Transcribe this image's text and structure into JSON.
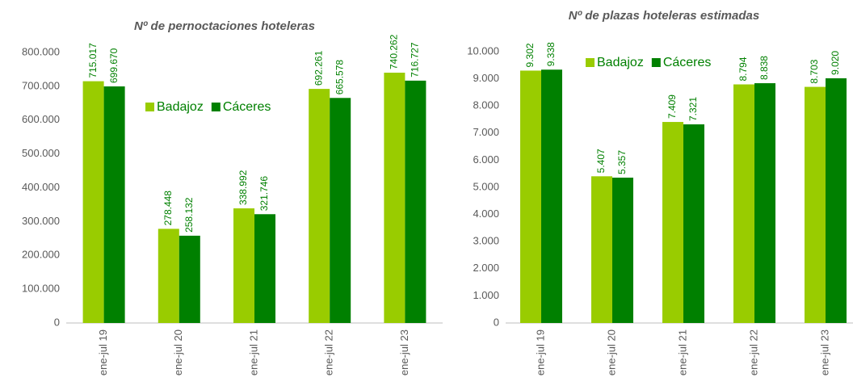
{
  "chart_data": [
    {
      "type": "bar",
      "title": "Nº de pernoctaciones hoteleras",
      "categories": [
        "ene-jul 19",
        "ene-jul 20",
        "ene-jul 21",
        "ene-jul 22",
        "ene-jul 23"
      ],
      "series": [
        {
          "name": "Badajoz",
          "color": "#99cc00",
          "values": [
            715017,
            278448,
            338992,
            692261,
            740262
          ],
          "value_labels": [
            "715.017",
            "278.448",
            "338.992",
            "692.261",
            "740.262"
          ]
        },
        {
          "name": "Cáceres",
          "color": "#008000",
          "values": [
            699670,
            258132,
            321746,
            665578,
            716727
          ],
          "value_labels": [
            "699.670",
            "258.132",
            "321.746",
            "665.578",
            "716.727"
          ]
        }
      ],
      "ylim": [
        0,
        800000
      ],
      "yticks": [
        0,
        {
          "value": 100000,
          "label": "100.000"
        },
        {
          "value": 200000,
          "label": "200.000"
        },
        {
          "value": 300000,
          "label": "300.000"
        },
        {
          "value": 400000,
          "label": "400.000"
        },
        {
          "value": 500000,
          "label": "500.000"
        },
        {
          "value": 600000,
          "label": "600.000"
        },
        {
          "value": 700000,
          "label": "700.000"
        },
        {
          "value": 800000,
          "label": "800.000"
        }
      ],
      "grid": false
    },
    {
      "type": "bar",
      "title": "Nº de plazas hoteleras estimadas",
      "categories": [
        "ene-jul 19",
        "ene-jul 20",
        "ene-jul 21",
        "ene-jul 22",
        "ene-jul 23"
      ],
      "series": [
        {
          "name": "Badajoz",
          "color": "#99cc00",
          "values": [
            9302,
            5407,
            7409,
            8794,
            8703
          ],
          "value_labels": [
            "9.302",
            "5.407",
            "7.409",
            "8.794",
            "8.703"
          ]
        },
        {
          "name": "Cáceres",
          "color": "#008000",
          "values": [
            9338,
            5357,
            7321,
            8838,
            9020
          ],
          "value_labels": [
            "9.338",
            "5.357",
            "7.321",
            "8.838",
            "9.020"
          ]
        }
      ],
      "ylim": [
        0,
        10000
      ],
      "yticks": [
        0,
        {
          "value": 1000,
          "label": "1.000"
        },
        {
          "value": 2000,
          "label": "2.000"
        },
        {
          "value": 3000,
          "label": "3.000"
        },
        {
          "value": 4000,
          "label": "4.000"
        },
        {
          "value": 5000,
          "label": "5.000"
        },
        {
          "value": 6000,
          "label": "6.000"
        },
        {
          "value": 7000,
          "label": "7.000"
        },
        {
          "value": 8000,
          "label": "8.000"
        },
        {
          "value": 9000,
          "label": "9.000"
        },
        {
          "value": 10000,
          "label": "10.000"
        }
      ],
      "grid": false
    }
  ]
}
